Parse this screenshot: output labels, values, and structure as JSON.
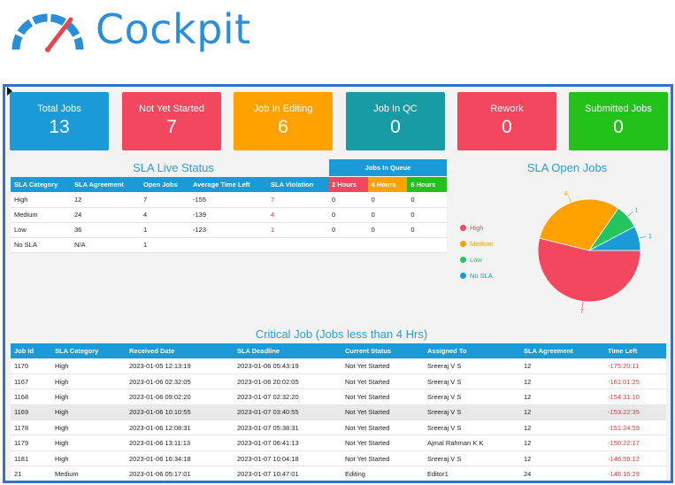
{
  "brand": {
    "name": "Cockpit",
    "color": "#2b8fd8",
    "needle_color": "#e5484d"
  },
  "kpis": [
    {
      "label": "Total Jobs",
      "value": "13",
      "color": "#1a9ad6"
    },
    {
      "label": "Not Yet Started",
      "value": "7",
      "color": "#f2475f"
    },
    {
      "label": "Job In Editing",
      "value": "6",
      "color": "#ffa200"
    },
    {
      "label": "Job In QC",
      "value": "0",
      "color": "#179ba4"
    },
    {
      "label": "Rework",
      "value": "0",
      "color": "#f2475f"
    },
    {
      "label": "Submitted Jobs",
      "value": "0",
      "color": "#22c21a"
    }
  ],
  "sla_live": {
    "title": "SLA Live Status",
    "columns": [
      "SLA Category",
      "SLA Agreement",
      "Open Jobs",
      "Average Time Left",
      "SLA Violation"
    ],
    "rows": [
      [
        "High",
        "12",
        "7",
        "-155",
        "7"
      ],
      [
        "Medium",
        "24",
        "4",
        "-139",
        "4"
      ],
      [
        "Low",
        "36",
        "1",
        "-123",
        "1"
      ],
      [
        "No SLA",
        "N/A",
        "1",
        "",
        ""
      ]
    ],
    "queue": {
      "title": "Jobs In Queue",
      "columns": [
        {
          "label": "2 Hours",
          "color": "#f2475f"
        },
        {
          "label": "4 Hours",
          "color": "#ffa200"
        },
        {
          "label": "6 Hours",
          "color": "#22c21a"
        }
      ],
      "rows": [
        [
          "0",
          "0",
          "0"
        ],
        [
          "0",
          "0",
          "0"
        ],
        [
          "0",
          "0",
          "0"
        ],
        [
          "",
          "",
          ""
        ]
      ]
    }
  },
  "chart_data": {
    "type": "pie",
    "title": "SLA Open Jobs",
    "categories": [
      "High",
      "Medium",
      "Low",
      "No SLA"
    ],
    "values": [
      7,
      4,
      1,
      1
    ],
    "colors": [
      "#f2475f",
      "#ffa200",
      "#22c55e",
      "#1a9ad6"
    ],
    "legend": "left"
  },
  "critical": {
    "title": "Critical Job (Jobs less than 4 Hrs)",
    "columns": [
      "Job Id",
      "SLA Category",
      "Received Date",
      "SLA Deadline",
      "Current Status",
      "Assigned To",
      "SLA Agreement",
      "Time Left"
    ],
    "rows": [
      [
        "1170",
        "High",
        "2023-01-05 12:13:19",
        "2023-01-06 05:43:19",
        "Not Yet Started",
        "Sreeraj V S",
        "12",
        "-175:20:11"
      ],
      [
        "1167",
        "High",
        "2023-01-06 02:32:05",
        "2023-01-06 20:02:05",
        "Not Yet Started",
        "Sreeraj V S",
        "12",
        "-161:01:25"
      ],
      [
        "1168",
        "High",
        "2023-01-06 09:02:20",
        "2023-01-07 02:32:20",
        "Not Yet Started",
        "Sreeraj V S",
        "12",
        "-154:31:10"
      ],
      [
        "1169",
        "High",
        "2023-01-06 10:10:55",
        "2023-01-07 03:40:55",
        "Not Yet Started",
        "Sreeraj V S",
        "12",
        "-153:22:35"
      ],
      [
        "1178",
        "High",
        "2023-01-06 12:08:31",
        "2023-01-07 05:38:31",
        "Not Yet Started",
        "Sreeraj V S",
        "12",
        "-151:24:59"
      ],
      [
        "1179",
        "High",
        "2023-01-06 13:11:13",
        "2023-01-07 06:41:13",
        "Not Yet Started",
        "Ajmal Rahman K K",
        "12",
        "-150:22:17"
      ],
      [
        "1181",
        "High",
        "2023-01-06 16:34:18",
        "2023-01-07 10:04:18",
        "Not Yet Started",
        "Sreeraj V S",
        "12",
        "-146:59:12"
      ],
      [
        "21",
        "Medium",
        "2023-01-06 05:17:01",
        "2023-01-07 10:47:01",
        "Editing",
        "Editor1",
        "24",
        "-146:16:29"
      ]
    ]
  }
}
